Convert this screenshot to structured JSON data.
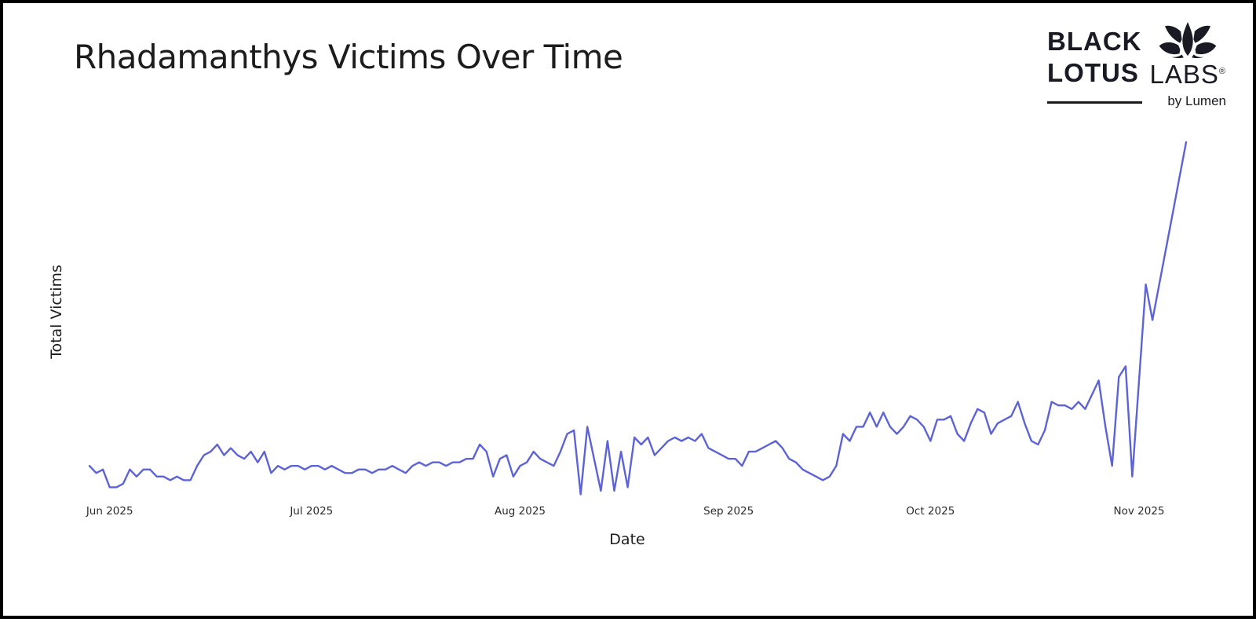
{
  "logo": {
    "word1": "BLACK",
    "word2": "LOTUS",
    "word3": "LABS",
    "registered": "®",
    "byline": "by Lumen",
    "color": "#1a1a24"
  },
  "chart_data": {
    "type": "line",
    "title": "Rhadamanthys Victims Over Time",
    "xlabel": "Date",
    "ylabel": "Total Victims",
    "x_tick_labels": [
      "Jun 2025",
      "Jul 2025",
      "Aug 2025",
      "Sep 2025",
      "Oct 2025",
      "Nov 2025"
    ],
    "x_tick_day_offsets": [
      3,
      33,
      64,
      95,
      125,
      156
    ],
    "x_start_date": "2025-05-29",
    "x_end_date": "2025-11-08",
    "cadence": "daily",
    "y_axis_tick_labels_visible": false,
    "grid": false,
    "legend": "none",
    "line_color": "#5c63d6",
    "ylim": [
      0,
      105
    ],
    "values_unit": "relative scale 0-100 (y-axis shows no numbers); 100 = final peak on 2025-11-08",
    "values": [
      9,
      7,
      8,
      3,
      3,
      4,
      8,
      6,
      8,
      8,
      6,
      6,
      5,
      6,
      5,
      5,
      9,
      12,
      13,
      15,
      12,
      14,
      12,
      11,
      13,
      10,
      13,
      7,
      9,
      8,
      9,
      9,
      8,
      9,
      9,
      8,
      9,
      8,
      7,
      7,
      8,
      8,
      7,
      8,
      8,
      9,
      8,
      7,
      9,
      10,
      9,
      10,
      10,
      9,
      10,
      10,
      11,
      11,
      15,
      13,
      6,
      11,
      12,
      6,
      9,
      10,
      13,
      11,
      10,
      9,
      13,
      18,
      19,
      1,
      20,
      11,
      2,
      16,
      2,
      13,
      3,
      17,
      15,
      17,
      12,
      14,
      16,
      17,
      16,
      17,
      16,
      18,
      14,
      13,
      12,
      11,
      11,
      9,
      13,
      13,
      14,
      15,
      16,
      14,
      11,
      10,
      8,
      7,
      6,
      5,
      6,
      9,
      18,
      16,
      20,
      20,
      24,
      20,
      24,
      20,
      18,
      20,
      23,
      22,
      20,
      16,
      22,
      22,
      23,
      18,
      16,
      21,
      25,
      24,
      18,
      21,
      22,
      23,
      27,
      21,
      16,
      15,
      19,
      27,
      26,
      26,
      25,
      27,
      25,
      29,
      33,
      20,
      9,
      34,
      37,
      6,
      33,
      60,
      50,
      60,
      70,
      80,
      90,
      100
    ]
  }
}
